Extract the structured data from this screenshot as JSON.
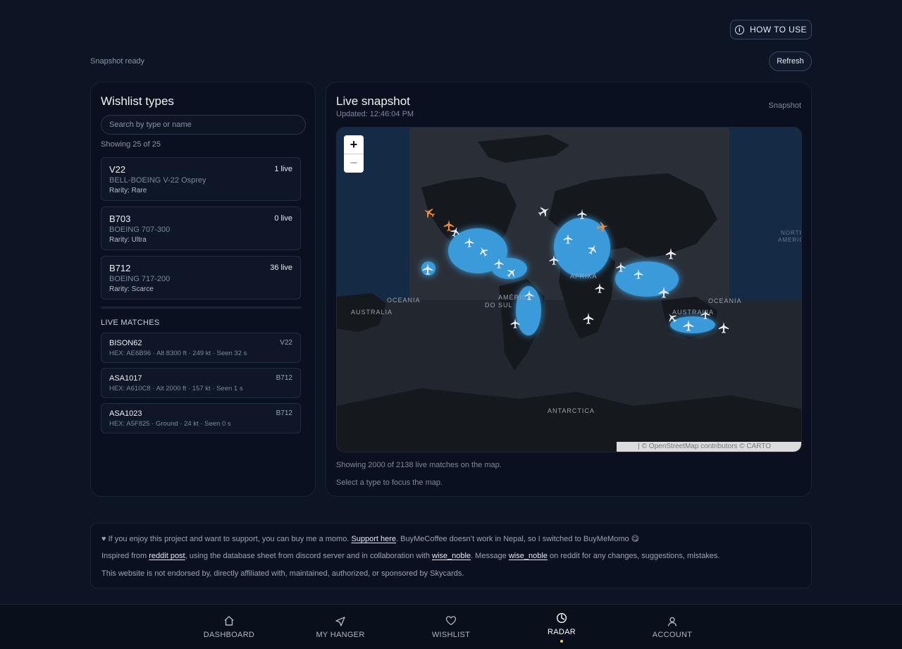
{
  "header": {
    "how_to_use": "HOW TO USE",
    "snapshot_status": "Snapshot ready",
    "refresh": "Refresh"
  },
  "wishlist": {
    "title": "Wishlist types",
    "search_placeholder": "Search by type or name",
    "showing": "Showing 25 of 25",
    "types": [
      {
        "code": "V22",
        "live": "1 live",
        "name": "BELL-BOEING V-22 Osprey",
        "rarity": "Rarity: Rare"
      },
      {
        "code": "B703",
        "live": "0 live",
        "name": "BOEING 707-300",
        "rarity": "Rarity: Ultra"
      },
      {
        "code": "B712",
        "live": "36 live",
        "name": "BOEING 717-200",
        "rarity": "Rarity: Scarce"
      }
    ],
    "live_matches_title": "LIVE MATCHES",
    "matches": [
      {
        "callsign": "BISON62",
        "type": "V22",
        "details": "HEX: AE6B96 · Alt 8300 ft · 249 kt · Seen 32 s"
      },
      {
        "callsign": "ASA1017",
        "type": "B712",
        "details": "HEX: A610C8 · Alt 2000 ft · 157 kt · Seen 1 s"
      },
      {
        "callsign": "ASA1023",
        "type": "B712",
        "details": "HEX: A5F825 · Ground · 24 kt · Seen 0 s"
      }
    ]
  },
  "snapshot": {
    "title": "Live snapshot",
    "updated": "Updated: 12:46:04 PM",
    "label": "Snapshot",
    "zoom_in": "+",
    "zoom_out": "−",
    "attribution": "| © OpenStreetMap contributors © CARTO",
    "map_labels": {
      "oceania_left": "OCEANIA",
      "australia_left": "AUSTRALIA",
      "america_do_sul_1": "AMÉRICA",
      "america_do_sul_2": "DO SUL",
      "afrika": "AFRIKA",
      "oceania_right": "OCEANIA",
      "australia_right": "AUSTRALIA",
      "antarctica": "ANTARCTICA",
      "north_america_1": "NORTH",
      "north_america_2": "AMERICA"
    },
    "showing_note": "Showing 2000 of 2138 live matches on the map.",
    "select_note": "Select a type to focus the map."
  },
  "footer": {
    "line1_pre": "♥ If you enjoy this project and want to support, you can buy me a momo. ",
    "line1_link": "Support here",
    "line1_post": ". BuyMeCoffee doesn’t work in Nepal, so I switched to BuyMeMomo 😋",
    "line2_pre": "Inspired from ",
    "line2_link1": "reddit post",
    "line2_mid1": ", using the database sheet from discord server and in collaboration with ",
    "line2_link2": "wise_noble",
    "line2_mid2": ". Message ",
    "line2_link3": "wise_noble",
    "line2_post": " on reddit for any changes, suggestions, mistakes.",
    "line3": "This website is not endorsed by, directly affiliated with, maintained, authorized, or sponsored by Skycards."
  },
  "nav": {
    "dashboard": "DASHBOARD",
    "my_hanger": "MY HANGER",
    "wishlist": "WISHLIST",
    "radar": "RADAR",
    "account": "ACCOUNT"
  },
  "icons": [
    "info-icon",
    "plus-icon",
    "minus-icon",
    "home-icon",
    "send-icon",
    "heart-icon",
    "radar-icon",
    "user-icon",
    "plane-icon"
  ],
  "colors": {
    "background": "#0d1424",
    "panel": "#0a1020",
    "map_glow": "#3a9ad9",
    "plane_orange": "#f08a3c",
    "active_dot": "#f2c94c"
  }
}
